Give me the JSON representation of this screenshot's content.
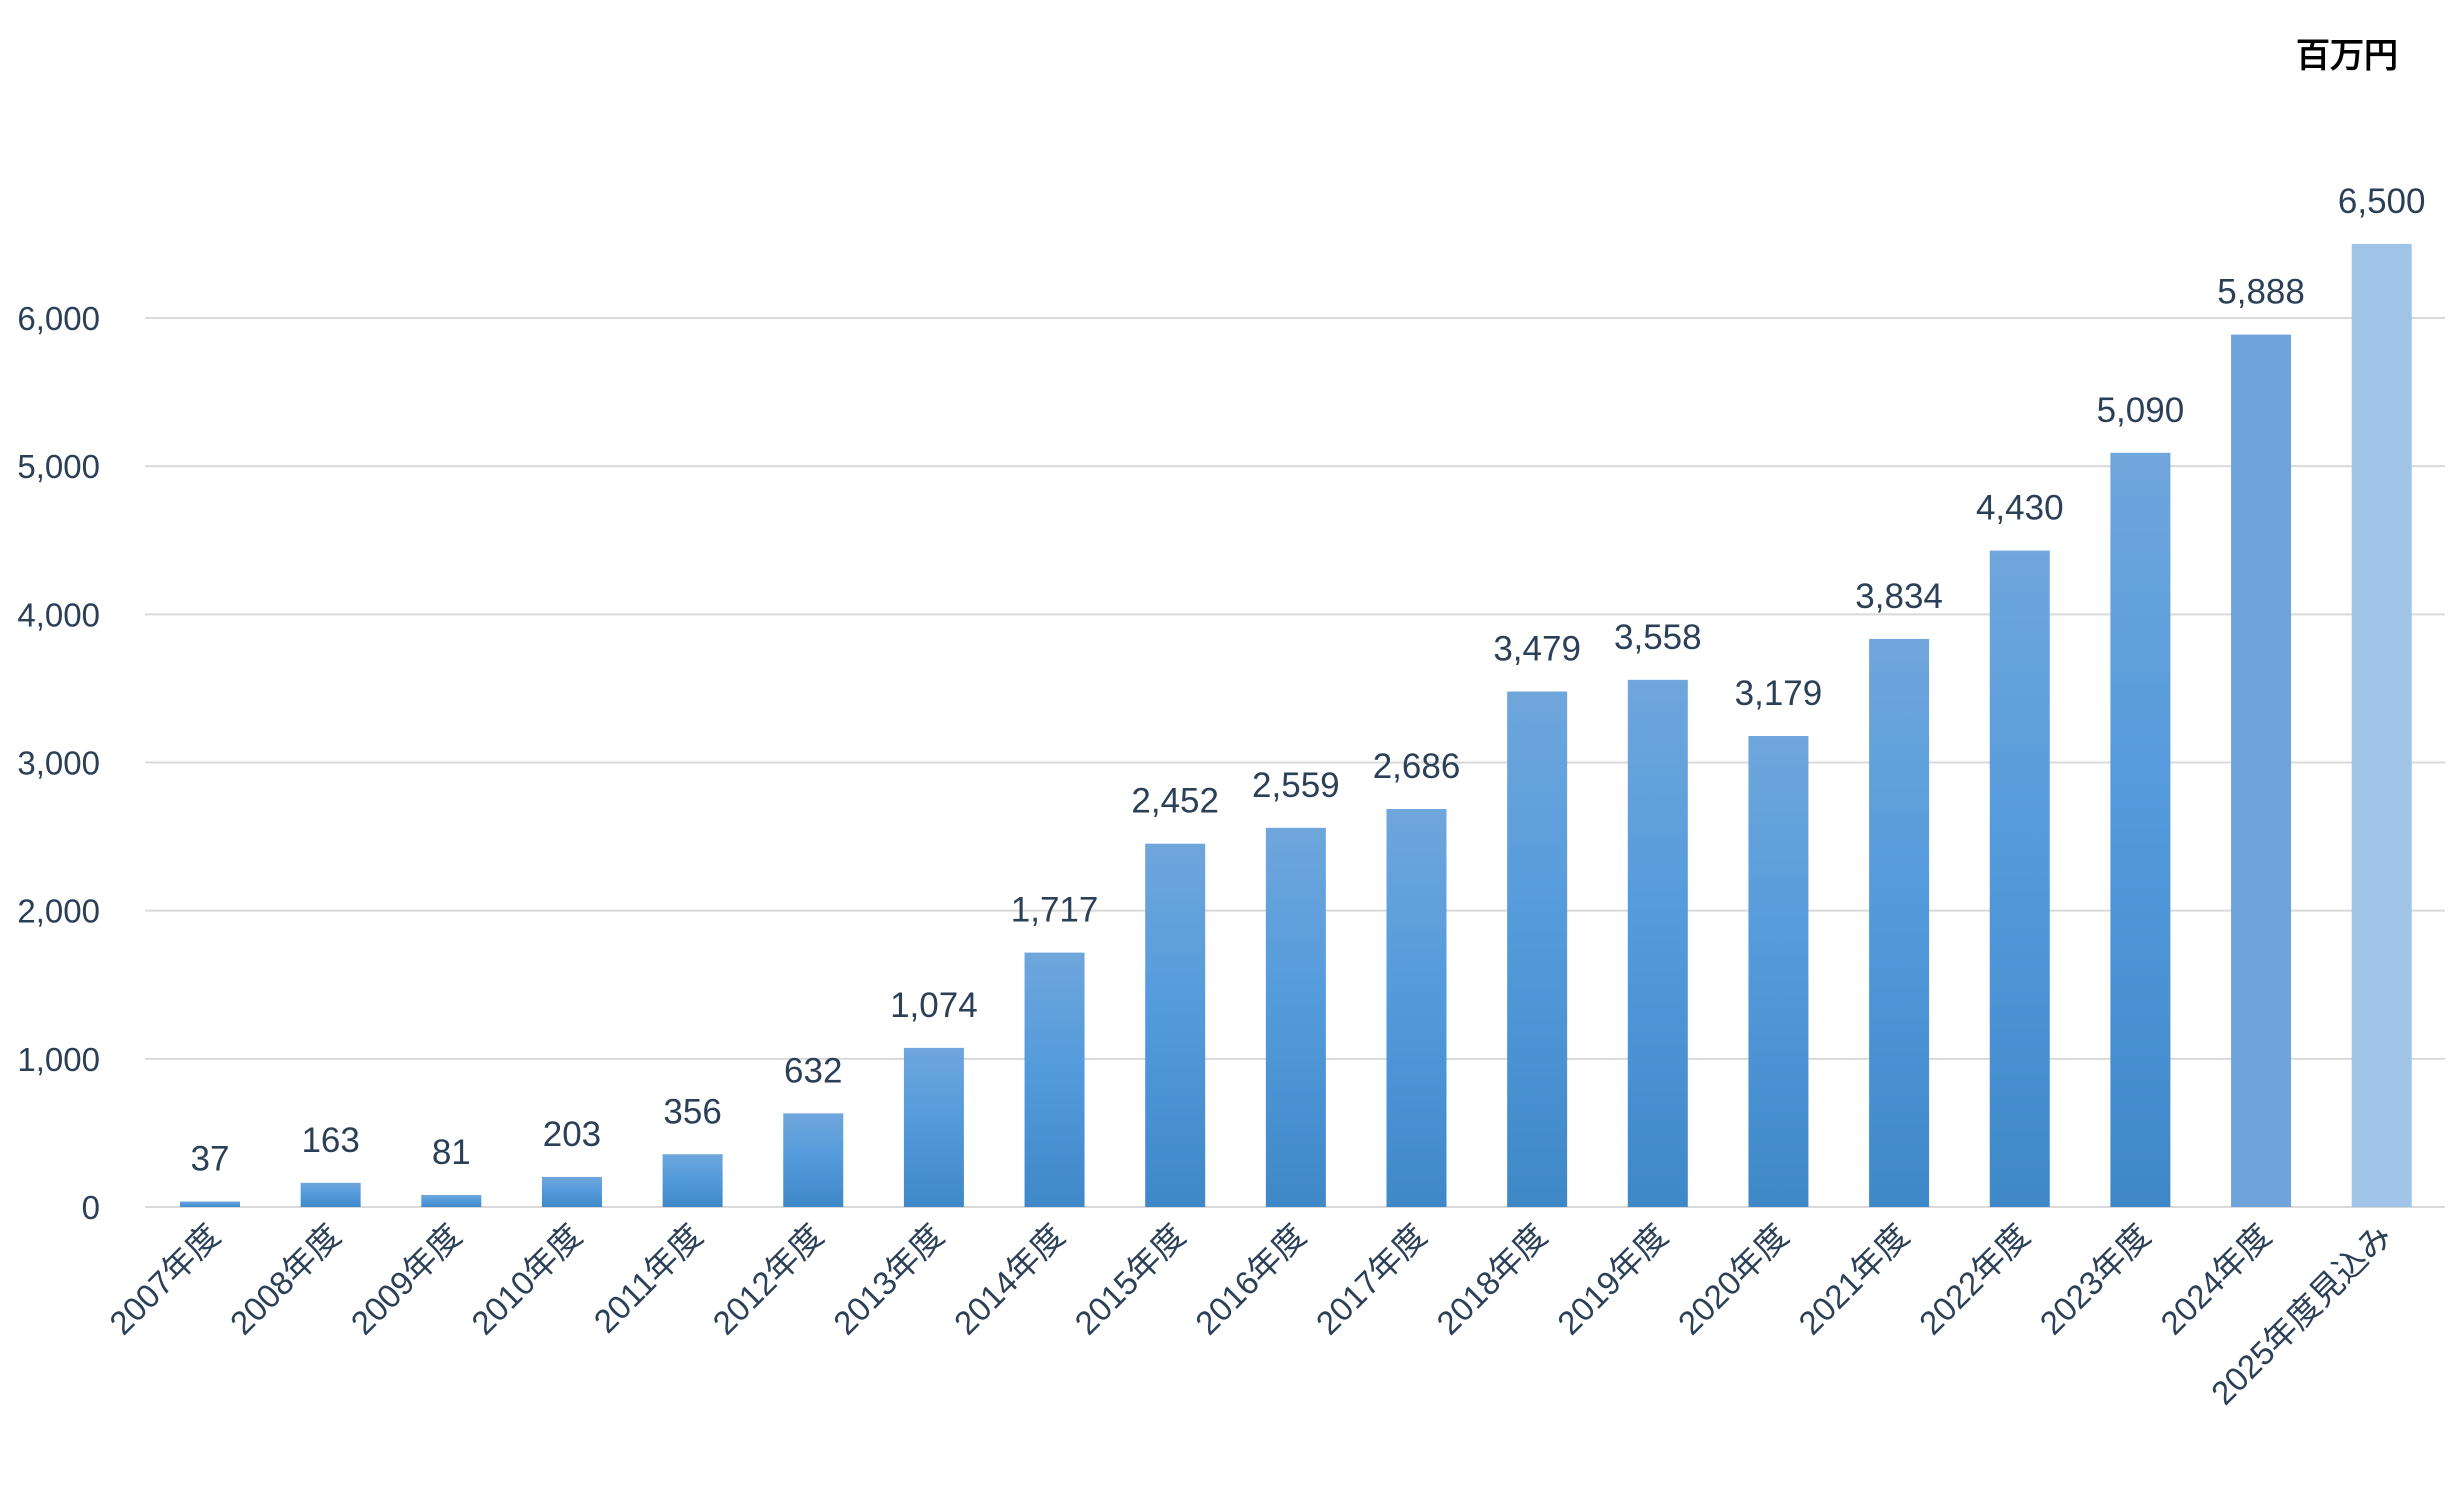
{
  "unit_label": "百万円",
  "chart_data": {
    "type": "bar",
    "categories": [
      "2007年度",
      "2008年度",
      "2009年度",
      "2010年度",
      "2011年度",
      "2012年度",
      "2013年度",
      "2014年度",
      "2015年度",
      "2016年度",
      "2017年度",
      "2018年度",
      "2019年度",
      "2020年度",
      "2021年度",
      "2022年度",
      "2023年度",
      "2024年度",
      "2025年度見込み"
    ],
    "values": [
      37,
      163,
      81,
      203,
      356,
      632,
      1074,
      1717,
      2452,
      2559,
      2686,
      3479,
      3558,
      3179,
      3834,
      4430,
      5090,
      5888,
      6500
    ],
    "data_labels": [
      "37",
      "163",
      "81",
      "203",
      "356",
      "632",
      "1,074",
      "1,717",
      "2,452",
      "2,559",
      "2,686",
      "3,479",
      "3,558",
      "3,179",
      "3,834",
      "4,430",
      "5,090",
      "5,888",
      "6,500"
    ],
    "yticks": [
      0,
      1000,
      2000,
      3000,
      4000,
      5000,
      6000
    ],
    "ytick_labels": [
      "0",
      "1,000",
      "2,000",
      "3,000",
      "4,000",
      "5,000",
      "6,000"
    ],
    "ylim": [
      0,
      6000
    ],
    "grid": true,
    "legend": "none",
    "colors": {
      "bar_top": "#6fa6dc",
      "bar_bottom": "#3f88c8",
      "bar_2024": "#6ea3db",
      "bar_forecast": "#9fc4e8",
      "forecast_label": "#6ea3db",
      "text": "#2b3f57",
      "grid": "#d9d9d9"
    }
  }
}
